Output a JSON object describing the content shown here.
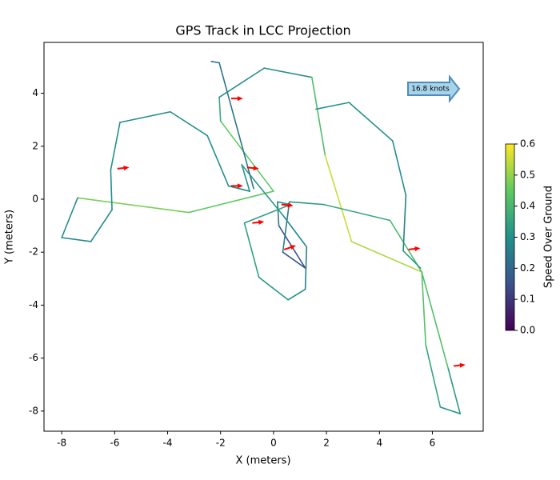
{
  "chart_data": {
    "type": "colored-track",
    "title": "GPS Track in LCC Projection",
    "x_label": "X (meters)",
    "y_label": "Y (meters)",
    "colorbar_label": "Speed Over Ground",
    "colormap": "viridis",
    "annotation": "16.8 knots",
    "x": [
      -7.4,
      -3.2,
      0.0,
      -2.0,
      -2.05,
      -0.35,
      1.45,
      1.95,
      2.95,
      5.6,
      6.6,
      7.05,
      6.3,
      5.75,
      5.6,
      4.4,
      1.9,
      0.6,
      0.35,
      1.2,
      0.2,
      0.15,
      0.65,
      -1.1,
      -0.55,
      0.55,
      1.2,
      1.25,
      0.35,
      -1.2,
      -0.9,
      -1.7,
      -2.5,
      -3.9,
      -5.8,
      -6.15,
      -6.1,
      -6.9,
      -8.0,
      -7.4,
      null,
      1.6,
      2.85,
      4.5,
      5.0,
      4.9,
      5.55,
      null,
      -2.35,
      -2.05,
      -0.75
    ],
    "y": [
      0.05,
      -0.5,
      0.3,
      2.95,
      3.85,
      4.95,
      4.6,
      1.65,
      -1.6,
      -2.75,
      -6.4,
      -8.1,
      -7.85,
      -5.5,
      -2.75,
      -0.8,
      -0.2,
      -0.1,
      -2.0,
      -2.6,
      -1.0,
      -0.1,
      -0.2,
      -0.9,
      -2.95,
      -3.8,
      -3.4,
      -1.8,
      -0.6,
      1.3,
      0.3,
      0.5,
      2.4,
      3.3,
      2.9,
      1.1,
      -0.4,
      -1.6,
      -1.45,
      0.05,
      null,
      3.4,
      3.65,
      2.2,
      0.15,
      -1.95,
      -2.6,
      null,
      5.2,
      5.15,
      0.4
    ],
    "speed": [
      0.5,
      0.45,
      0.45,
      0.45,
      0.28,
      0.3,
      0.28,
      0.55,
      0.55,
      0.5,
      0.35,
      0.3,
      0.3,
      0.4,
      0.45,
      0.38,
      0.35,
      0.3,
      0.2,
      0.12,
      0.2,
      0.3,
      0.33,
      0.35,
      0.33,
      0.3,
      0.28,
      0.25,
      0.3,
      0.35,
      0.25,
      0.3,
      0.3,
      0.28,
      0.3,
      0.3,
      0.28,
      0.28,
      0.28,
      0.3,
      null,
      0.3,
      0.32,
      0.3,
      0.28,
      0.25,
      0.4,
      null,
      0.22,
      0.22,
      0.25
    ],
    "arrows": {
      "x": [
        -5.9,
        -1.6,
        -1.0,
        -1.6,
        0.3,
        -0.8,
        0.4,
        5.1,
        6.8
      ],
      "y": [
        1.15,
        3.8,
        1.2,
        0.5,
        -0.2,
        -0.9,
        -1.9,
        -1.9,
        -6.3
      ],
      "u": [
        0.45,
        0.45,
        0.45,
        0.45,
        0.45,
        0.45,
        0.45,
        0.45,
        0.45
      ],
      "v": [
        0.05,
        0.0,
        -0.05,
        0.0,
        -0.05,
        0.05,
        0.15,
        0.05,
        0.05
      ],
      "color": "#ff0000"
    },
    "xlim": [
      -8.67,
      7.92
    ],
    "ylim": [
      -8.76,
      5.92
    ],
    "xticks": [
      -8,
      -6,
      -4,
      -2,
      0,
      2,
      4,
      6
    ],
    "yticks": [
      -8,
      -6,
      -4,
      -2,
      0,
      2,
      4
    ],
    "clim": [
      0,
      0.6
    ],
    "cticks": [
      {
        "value": 0,
        "label": "0.0"
      },
      {
        "value": 0.1,
        "label": "0.1"
      },
      {
        "value": 0.2,
        "label": "0.2"
      },
      {
        "value": 0.3,
        "label": "0.3"
      },
      {
        "value": 0.4,
        "label": "0.4"
      },
      {
        "value": 0.5,
        "label": "0.5"
      },
      {
        "value": 0.6,
        "label": "0.6"
      }
    ]
  }
}
